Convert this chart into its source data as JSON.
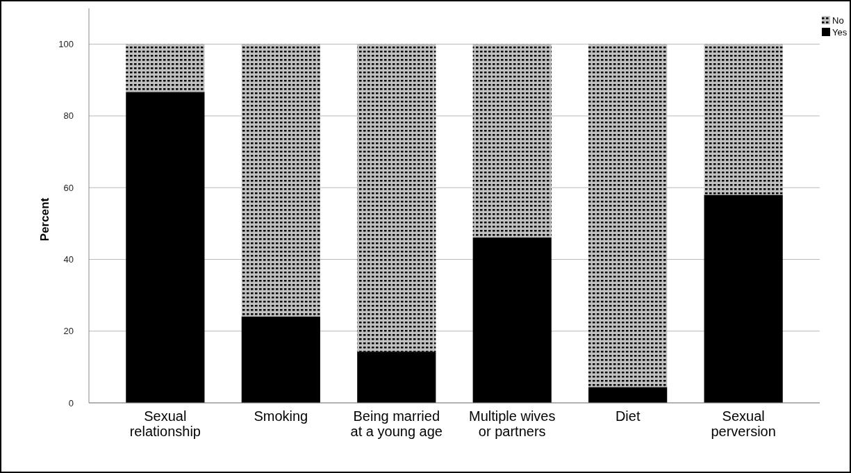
{
  "chart_data": {
    "type": "bar",
    "stacked": true,
    "ylabel": "Percent",
    "categories": [
      "Sexual\nrelationship",
      "Smoking",
      "Being married\nat a young age",
      "Multiple wives\nor partners",
      "Diet",
      "Sexual\nperversion"
    ],
    "series": [
      {
        "name": "Yes",
        "color": "#000000",
        "values": [
          86.7,
          24.1,
          14.3,
          46.1,
          4.4,
          58.0
        ]
      },
      {
        "name": "No",
        "color": "#c0c0c0",
        "values": [
          13.3,
          75.9,
          85.7,
          53.9,
          95.6,
          42.0
        ]
      }
    ],
    "ylim": [
      0,
      110
    ],
    "yticks": [
      0,
      20,
      40,
      60,
      80,
      100
    ],
    "grid": "y",
    "legend": "top right"
  }
}
